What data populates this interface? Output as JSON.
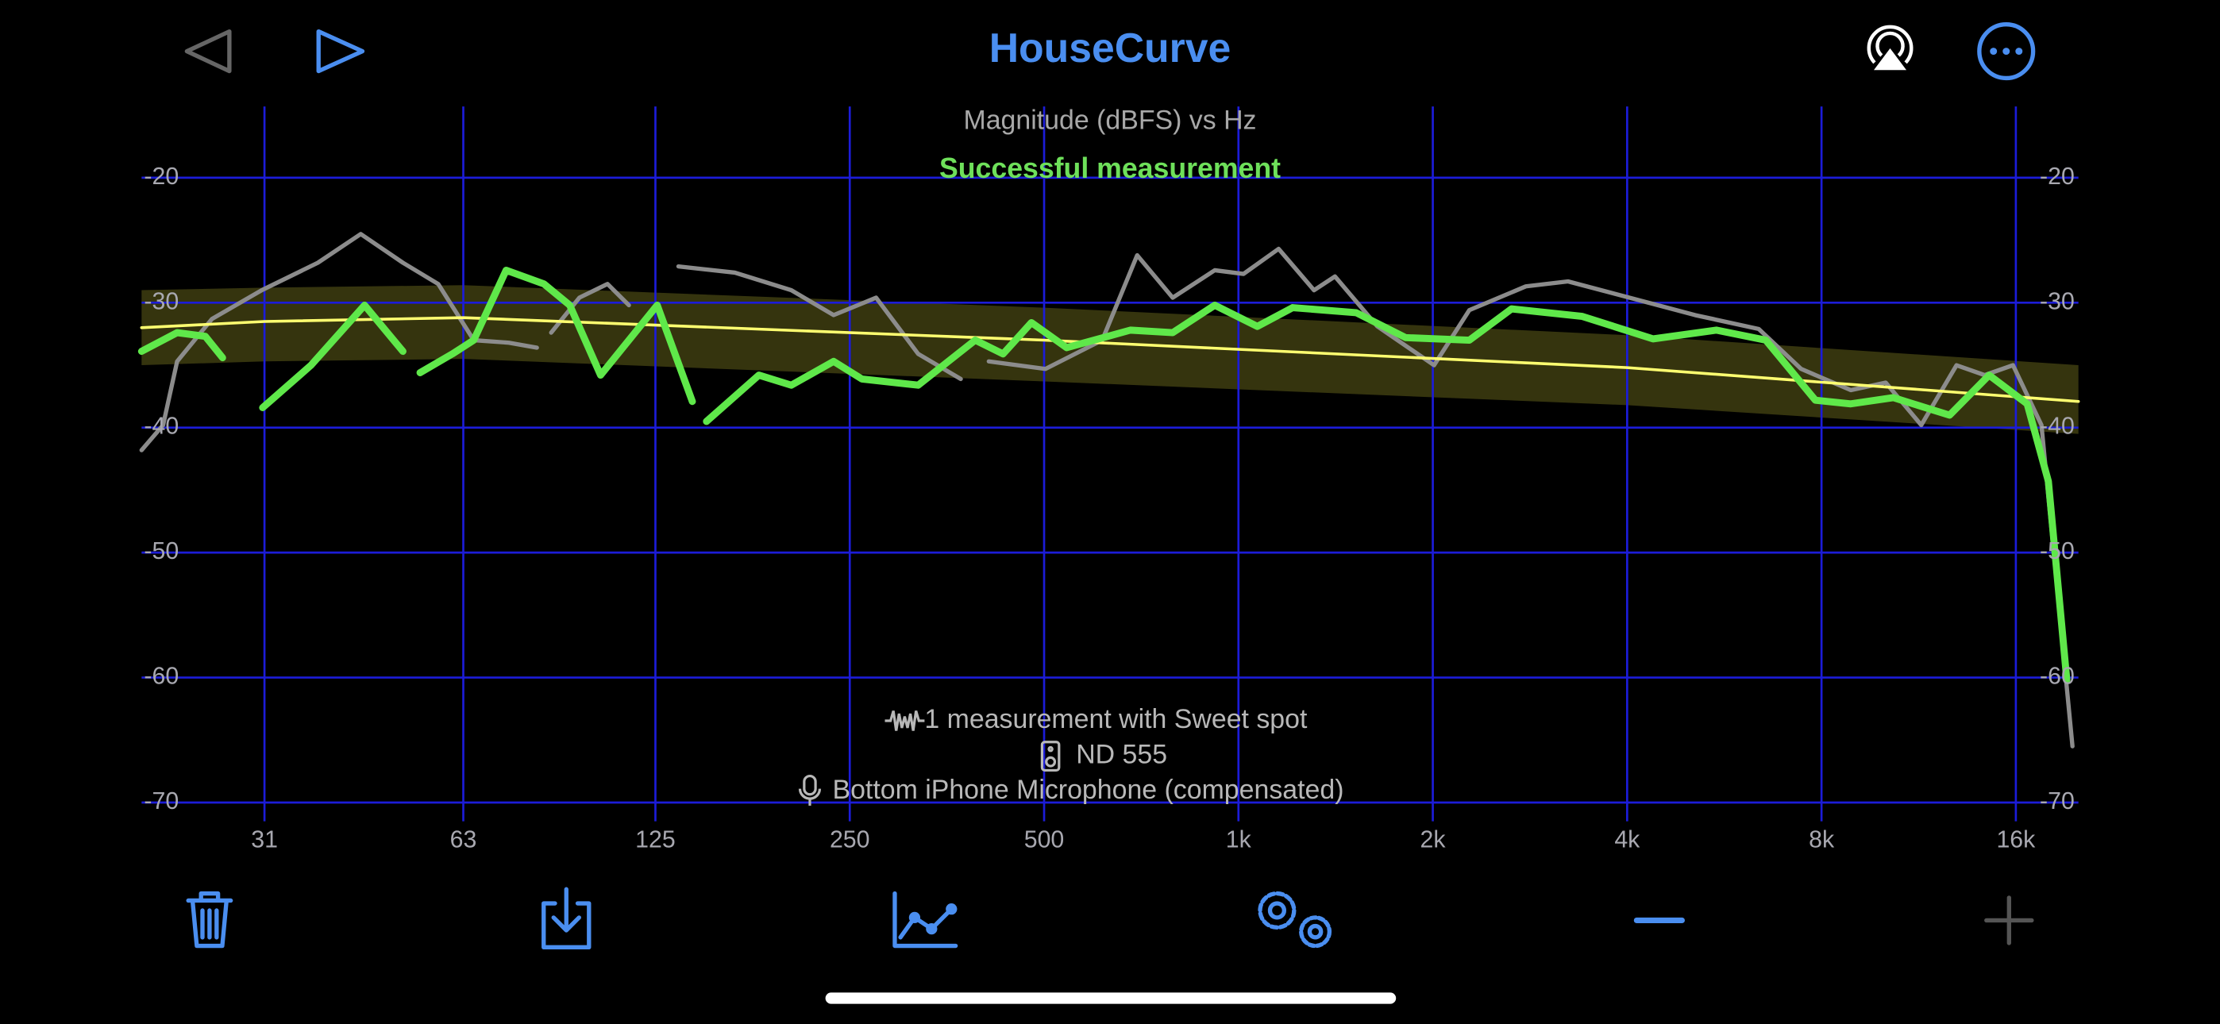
{
  "header": {
    "title": "HouseCurve"
  },
  "chart_data": {
    "type": "line",
    "title": "Magnitude (dBFS) vs Hz",
    "annotation": "Successful measurement",
    "xscale": "log",
    "xlim": [
      20,
      20000
    ],
    "ylim": [
      -71.5,
      -14.3
    ],
    "xticks": [
      31,
      63,
      125,
      250,
      500,
      {
        "value": 1000,
        "label": "1k"
      },
      {
        "value": 2000,
        "label": "2k"
      },
      {
        "value": 4000,
        "label": "4k"
      },
      {
        "value": 8000,
        "label": "8k"
      },
      {
        "value": 16000,
        "label": "16k"
      }
    ],
    "yticks": [
      -20,
      -30,
      -40,
      -50,
      -60,
      -70
    ],
    "grid": true,
    "grid_color": "#1c1cd8",
    "band": {
      "color": "#3b3a10",
      "x": [
        20,
        31,
        63,
        500,
        4000,
        20000
      ],
      "upper": [
        -29,
        -28.8,
        -28.6,
        -30.4,
        -32.6,
        -35
      ],
      "lower": [
        -35,
        -34.7,
        -34.5,
        -36.3,
        -38.2,
        -40.5
      ]
    },
    "series": [
      {
        "color": "#8c8c8c",
        "width": 3,
        "x": [
          20,
          21.6,
          22.7,
          25.7,
          30.7,
          37.5,
          43.7,
          50.8,
          57.6,
          65.4,
          74.1,
          81.9,
          84.0,
          86.2,
          95.3,
          105.4,
          113.7,
          119.6,
          135.7,
          165.9,
          203,
          236,
          274.6,
          319,
          371.4,
          391,
          410.6,
          502.5,
          615,
          697,
          791,
          919,
          1018,
          1154,
          1309,
          1411,
          1642,
          2009,
          2278,
          2787,
          3239,
          4167,
          5097,
          6396,
          7437,
          8878,
          10060,
          11420,
          12950,
          14320,
          15840,
          17530,
          19580
        ],
        "values": [
          -41.8,
          -39.8,
          -34.7,
          -31.3,
          -29,
          -26.8,
          -24.5,
          -26.8,
          -28.5,
          -33,
          -33.2,
          -33.6,
          null,
          -32.4,
          -29.6,
          -28.5,
          -30.2,
          null,
          -27.1,
          -27.6,
          -29,
          -31,
          -29.6,
          -34.1,
          -36.1,
          null,
          -34.7,
          -35.3,
          -33,
          -26.2,
          -29.6,
          -27.4,
          -27.7,
          -25.7,
          -29,
          -27.9,
          -31.9,
          -35,
          -30.6,
          -28.7,
          -28.3,
          -29.8,
          -31,
          -32.1,
          -35.3,
          -37,
          -36.4,
          -39.8,
          -35,
          -35.8,
          -35,
          -39.8,
          -65.5
        ]
      },
      {
        "color": "#ffff70",
        "width": 2,
        "x": [
          20,
          31,
          63,
          500,
          4000,
          20000
        ],
        "values": [
          -32,
          -31.5,
          -31.2,
          -33,
          -35.2,
          -37.9
        ]
      },
      {
        "color": "#5fe84a",
        "width": 5,
        "x": [
          20,
          22.7,
          25.1,
          26.7,
          28.5,
          30.8,
          36.6,
          44.3,
          50.8,
          52.4,
          54.0,
          60.6,
          65.4,
          73.4,
          84.0,
          92.1,
          102.8,
          125.8,
          142.6,
          146,
          150.0,
          180.8,
          203,
          236,
          261,
          319,
          391,
          432,
          478,
          542,
          680,
          791,
          919,
          1070,
          1213,
          1522,
          1815,
          2278,
          2648,
          3409,
          4385,
          5500,
          6560,
          7827,
          8878,
          10330,
          12630,
          14540,
          16660,
          17970,
          19190
        ],
        "values": [
          -33.9,
          -32.4,
          -32.7,
          -34.4,
          null,
          -38.4,
          -35,
          -30.2,
          -33.9,
          null,
          -35.6,
          -34.1,
          -33,
          -27.4,
          -28.5,
          -30.2,
          -35.8,
          -30.2,
          -37.9,
          null,
          -39.5,
          -35.8,
          -36.6,
          -34.7,
          -36.1,
          -36.6,
          -33,
          -34.1,
          -31.6,
          -33.6,
          -32.2,
          -32.4,
          -30.2,
          -31.9,
          -30.4,
          -30.8,
          -32.8,
          -33,
          -30.5,
          -31.1,
          -32.9,
          -32.2,
          -33,
          -37.8,
          -38.1,
          -37.6,
          -39,
          -35.8,
          -38.1,
          -44.3,
          -60.2
        ]
      }
    ]
  },
  "info": {
    "measurement": "1 measurement with Sweet spot",
    "speaker": "ND 555",
    "microphone": "Bottom iPhone Microphone (compensated)"
  }
}
